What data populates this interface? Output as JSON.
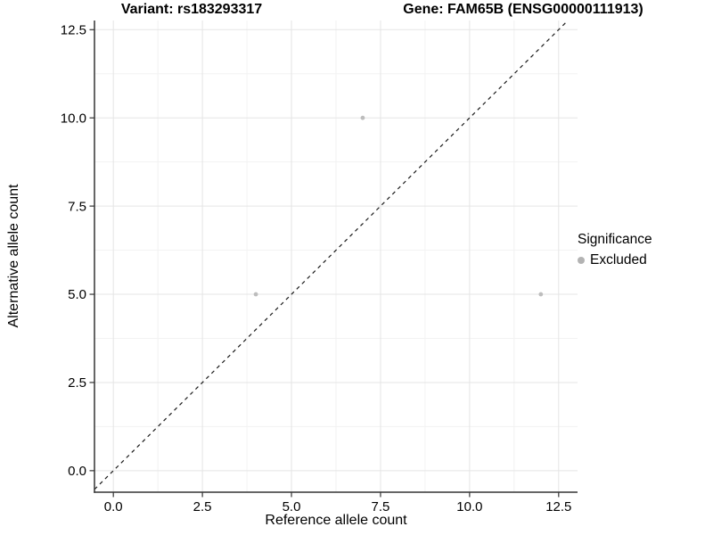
{
  "figure": {
    "title_variant": "Variant: rs183293317",
    "title_gene": "Gene: FAM65B (ENSG00000111913)"
  },
  "chart_data": {
    "type": "scatter",
    "title": "Variant: rs183293317    Gene: FAM65B (ENSG00000111913)",
    "xlabel": "Reference allele count",
    "ylabel": "Alternative allele count",
    "x_ticks": {
      "values": [
        0,
        2.5,
        5,
        7.5,
        10,
        12.5
      ],
      "labels": [
        "0.0",
        "2.5",
        "5.0",
        "7.5",
        "10.0",
        "12.5"
      ]
    },
    "y_ticks": {
      "values": [
        0,
        2.5,
        5,
        7.5,
        10,
        12.5
      ],
      "labels": [
        "0.0",
        "2.5",
        "5.0",
        "7.5",
        "10.0",
        "12.5"
      ]
    },
    "xlim": [
      -0.53,
      13.03
    ],
    "ylim": [
      -0.61,
      12.76
    ],
    "grid": {
      "major": true,
      "minor": true
    },
    "reference_line": {
      "type": "identity",
      "slope": 1,
      "intercept": 0,
      "style": "dashed",
      "color": "#1a1a1a"
    },
    "series": [
      {
        "name": "Excluded",
        "color": "#bdbdbd",
        "points": [
          {
            "x": 4,
            "y": 5
          },
          {
            "x": 7,
            "y": 10
          },
          {
            "x": 12,
            "y": 5
          }
        ]
      }
    ],
    "legend": {
      "title": "Significance",
      "position": "right",
      "items": [
        {
          "label": "Excluded",
          "color": "#b3b3b3"
        }
      ]
    }
  },
  "style": {
    "axis_color": "#333333",
    "tick_label_color": "#000000",
    "grid_major_color": "#e5e5e5",
    "grid_minor_color": "#f2f2f2",
    "background": "#ffffff"
  }
}
